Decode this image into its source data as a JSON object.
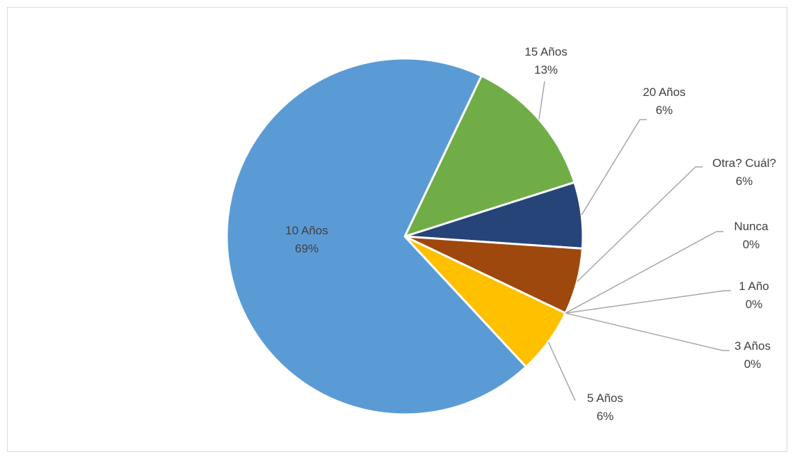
{
  "chart_data": {
    "type": "pie",
    "title": "",
    "legend": "none",
    "slices": [
      {
        "label": "15 Años",
        "percent_label": "13%",
        "value": 13,
        "color": "#70AD47"
      },
      {
        "label": "20 Años",
        "percent_label": "6%",
        "value": 6,
        "color": "#264478"
      },
      {
        "label": "Otra? Cuál?",
        "percent_label": "6%",
        "value": 6,
        "color": "#9E480E"
      },
      {
        "label": "Nunca",
        "percent_label": "0%",
        "value": 0,
        "color": "#636363"
      },
      {
        "label": "1 Año",
        "percent_label": "0%",
        "value": 0,
        "color": "#997300"
      },
      {
        "label": "3 Años",
        "percent_label": "0%",
        "value": 0,
        "color": "#ED7D31"
      },
      {
        "label": "5 Años",
        "percent_label": "6%",
        "value": 6,
        "color": "#FFC000"
      },
      {
        "label": "10 Años",
        "percent_label": "69%",
        "value": 69,
        "color": "#5B9BD5"
      }
    ]
  }
}
